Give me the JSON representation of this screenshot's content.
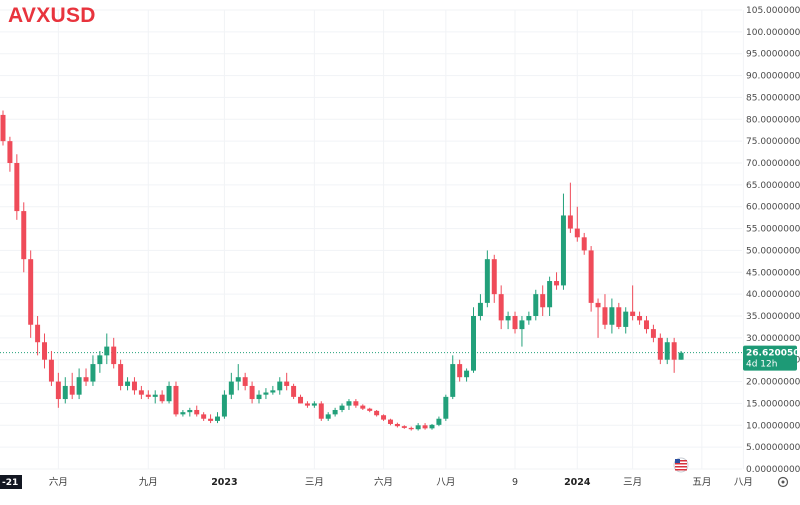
{
  "symbol": "AVXUSD",
  "colors": {
    "up": "#22a07a",
    "down": "#ef4b59",
    "grid": "#f1f3f6",
    "price_line": "#22a07a",
    "badge_bg": "#1d9a76"
  },
  "price_badge": {
    "price": "26.62005000",
    "countdown": "4d 12h"
  },
  "bottom_left_label": "-21",
  "chart_data": {
    "type": "candlestick",
    "ylim": [
      0,
      105
    ],
    "y_ticks": [
      "0.00000000",
      "5.00000000",
      "10.00000000",
      "15.00000000",
      "20.00000000",
      "25.00000000",
      "30.00000000",
      "35.00000000",
      "40.00000000",
      "45.00000000",
      "50.00000000",
      "55.00000000",
      "60.00000000",
      "65.00000000",
      "70.00000000",
      "75.00000000",
      "80.00000000",
      "85.00000000",
      "90.00000000",
      "95.00000000",
      "100.00000000",
      "105.00000000"
    ],
    "x_labels": [
      "六月",
      "九月",
      "2023",
      "三月",
      "六月",
      "八月",
      "9",
      "2024",
      "三月",
      "五月",
      "八月"
    ],
    "last_price": 26.62005,
    "candles": [
      {
        "o": 81,
        "h": 82,
        "l": 74,
        "c": 75
      },
      {
        "o": 75,
        "h": 76,
        "l": 68,
        "c": 70
      },
      {
        "o": 70,
        "h": 72,
        "l": 57,
        "c": 59
      },
      {
        "o": 59,
        "h": 61,
        "l": 45,
        "c": 48
      },
      {
        "o": 48,
        "h": 50,
        "l": 30,
        "c": 33
      },
      {
        "o": 33,
        "h": 35,
        "l": 26,
        "c": 29
      },
      {
        "o": 29,
        "h": 31,
        "l": 23,
        "c": 25
      },
      {
        "o": 25,
        "h": 27,
        "l": 19,
        "c": 20
      },
      {
        "o": 20,
        "h": 22,
        "l": 14,
        "c": 16
      },
      {
        "o": 16,
        "h": 21,
        "l": 15,
        "c": 19
      },
      {
        "o": 19,
        "h": 22,
        "l": 16,
        "c": 17
      },
      {
        "o": 17,
        "h": 23,
        "l": 16,
        "c": 21
      },
      {
        "o": 21,
        "h": 23,
        "l": 19,
        "c": 20
      },
      {
        "o": 20,
        "h": 26,
        "l": 19,
        "c": 24
      },
      {
        "o": 24,
        "h": 27,
        "l": 22,
        "c": 26
      },
      {
        "o": 26,
        "h": 31,
        "l": 24,
        "c": 28
      },
      {
        "o": 28,
        "h": 30,
        "l": 23,
        "c": 24
      },
      {
        "o": 24,
        "h": 25,
        "l": 18,
        "c": 19
      },
      {
        "o": 19,
        "h": 21,
        "l": 18,
        "c": 20
      },
      {
        "o": 20,
        "h": 21,
        "l": 17,
        "c": 18
      },
      {
        "o": 18,
        "h": 19,
        "l": 16,
        "c": 17
      },
      {
        "o": 17,
        "h": 18,
        "l": 16,
        "c": 16.5
      },
      {
        "o": 16.5,
        "h": 18,
        "l": 15,
        "c": 17
      },
      {
        "o": 17,
        "h": 18,
        "l": 15,
        "c": 15.5
      },
      {
        "o": 15.5,
        "h": 20,
        "l": 15,
        "c": 19
      },
      {
        "o": 19,
        "h": 20,
        "l": 12,
        "c": 12.5
      },
      {
        "o": 12.5,
        "h": 13.5,
        "l": 12,
        "c": 13
      },
      {
        "o": 13,
        "h": 14,
        "l": 12,
        "c": 13.5
      },
      {
        "o": 13.5,
        "h": 14.5,
        "l": 12,
        "c": 12.5
      },
      {
        "o": 12.5,
        "h": 13,
        "l": 11,
        "c": 11.5
      },
      {
        "o": 11.5,
        "h": 12.5,
        "l": 10.5,
        "c": 11
      },
      {
        "o": 11,
        "h": 13,
        "l": 10.5,
        "c": 12
      },
      {
        "o": 12,
        "h": 18,
        "l": 11.5,
        "c": 17
      },
      {
        "o": 17,
        "h": 22,
        "l": 16,
        "c": 20
      },
      {
        "o": 20,
        "h": 24,
        "l": 18,
        "c": 21
      },
      {
        "o": 21,
        "h": 22,
        "l": 18,
        "c": 19
      },
      {
        "o": 19,
        "h": 20,
        "l": 15,
        "c": 16
      },
      {
        "o": 16,
        "h": 18,
        "l": 15,
        "c": 17
      },
      {
        "o": 17,
        "h": 18.5,
        "l": 16,
        "c": 17.5
      },
      {
        "o": 17.5,
        "h": 19,
        "l": 17,
        "c": 18
      },
      {
        "o": 18,
        "h": 21,
        "l": 17,
        "c": 20
      },
      {
        "o": 20,
        "h": 22,
        "l": 18,
        "c": 19
      },
      {
        "o": 19,
        "h": 19.5,
        "l": 16,
        "c": 16.5
      },
      {
        "o": 16.5,
        "h": 17,
        "l": 15,
        "c": 15
      },
      {
        "o": 15,
        "h": 15.5,
        "l": 14,
        "c": 14.5
      },
      {
        "o": 14.5,
        "h": 15.5,
        "l": 14,
        "c": 15
      },
      {
        "o": 15,
        "h": 15.5,
        "l": 11,
        "c": 11.5
      },
      {
        "o": 11.5,
        "h": 13,
        "l": 11,
        "c": 12.5
      },
      {
        "o": 12.5,
        "h": 14,
        "l": 12,
        "c": 13.5
      },
      {
        "o": 13.5,
        "h": 15,
        "l": 13,
        "c": 14.5
      },
      {
        "o": 14.5,
        "h": 16,
        "l": 13.5,
        "c": 15.5
      },
      {
        "o": 15.5,
        "h": 16,
        "l": 14,
        "c": 14.5
      },
      {
        "o": 14.5,
        "h": 14.8,
        "l": 13.5,
        "c": 13.8
      },
      {
        "o": 13.8,
        "h": 14,
        "l": 13,
        "c": 13.3
      },
      {
        "o": 13.3,
        "h": 13.5,
        "l": 12,
        "c": 12.3
      },
      {
        "o": 12.3,
        "h": 12.5,
        "l": 11,
        "c": 11.3
      },
      {
        "o": 11.3,
        "h": 11.5,
        "l": 10,
        "c": 10.3
      },
      {
        "o": 10.3,
        "h": 10.6,
        "l": 9.5,
        "c": 9.8
      },
      {
        "o": 9.8,
        "h": 10,
        "l": 9.2,
        "c": 9.4
      },
      {
        "o": 9.4,
        "h": 9.7,
        "l": 8.8,
        "c": 9.1
      },
      {
        "o": 9.1,
        "h": 10.5,
        "l": 8.8,
        "c": 10
      },
      {
        "o": 10,
        "h": 10.5,
        "l": 9,
        "c": 9.3
      },
      {
        "o": 9.3,
        "h": 10.3,
        "l": 9,
        "c": 10.1
      },
      {
        "o": 10.1,
        "h": 12,
        "l": 9.8,
        "c": 11.5
      },
      {
        "o": 11.5,
        "h": 17,
        "l": 11,
        "c": 16.5
      },
      {
        "o": 16.5,
        "h": 26,
        "l": 16,
        "c": 24
      },
      {
        "o": 24,
        "h": 25,
        "l": 20,
        "c": 21
      },
      {
        "o": 21,
        "h": 23,
        "l": 20,
        "c": 22.5
      },
      {
        "o": 22.5,
        "h": 37,
        "l": 22,
        "c": 35
      },
      {
        "o": 35,
        "h": 40,
        "l": 34,
        "c": 38
      },
      {
        "o": 38,
        "h": 50,
        "l": 37,
        "c": 48
      },
      {
        "o": 48,
        "h": 49,
        "l": 38,
        "c": 40
      },
      {
        "o": 40,
        "h": 42,
        "l": 32,
        "c": 34
      },
      {
        "o": 34,
        "h": 36,
        "l": 32,
        "c": 35
      },
      {
        "o": 35,
        "h": 36,
        "l": 31,
        "c": 32
      },
      {
        "o": 32,
        "h": 35,
        "l": 28,
        "c": 34
      },
      {
        "o": 34,
        "h": 36,
        "l": 33,
        "c": 35
      },
      {
        "o": 35,
        "h": 41,
        "l": 34,
        "c": 40
      },
      {
        "o": 40,
        "h": 42,
        "l": 35,
        "c": 37
      },
      {
        "o": 37,
        "h": 44,
        "l": 35,
        "c": 43
      },
      {
        "o": 43,
        "h": 45,
        "l": 41,
        "c": 42
      },
      {
        "o": 42,
        "h": 63,
        "l": 41,
        "c": 58
      },
      {
        "o": 58,
        "h": 65.5,
        "l": 54,
        "c": 55
      },
      {
        "o": 55,
        "h": 60,
        "l": 52,
        "c": 53
      },
      {
        "o": 53,
        "h": 54,
        "l": 49,
        "c": 50
      },
      {
        "o": 50,
        "h": 51,
        "l": 36,
        "c": 38
      },
      {
        "o": 38,
        "h": 39,
        "l": 30,
        "c": 37
      },
      {
        "o": 37,
        "h": 40,
        "l": 32,
        "c": 33
      },
      {
        "o": 33,
        "h": 39,
        "l": 31,
        "c": 37
      },
      {
        "o": 37,
        "h": 38,
        "l": 32,
        "c": 32.5
      },
      {
        "o": 32.5,
        "h": 37,
        "l": 31,
        "c": 36
      },
      {
        "o": 36,
        "h": 42,
        "l": 34,
        "c": 35
      },
      {
        "o": 35,
        "h": 36,
        "l": 33,
        "c": 34
      },
      {
        "o": 34,
        "h": 35,
        "l": 31,
        "c": 32
      },
      {
        "o": 32,
        "h": 33,
        "l": 29,
        "c": 30
      },
      {
        "o": 30,
        "h": 31,
        "l": 24,
        "c": 25
      },
      {
        "o": 25,
        "h": 30,
        "l": 24,
        "c": 29
      },
      {
        "o": 29,
        "h": 30,
        "l": 22,
        "c": 25
      },
      {
        "o": 25,
        "h": 27,
        "l": 25,
        "c": 26.6
      }
    ]
  }
}
